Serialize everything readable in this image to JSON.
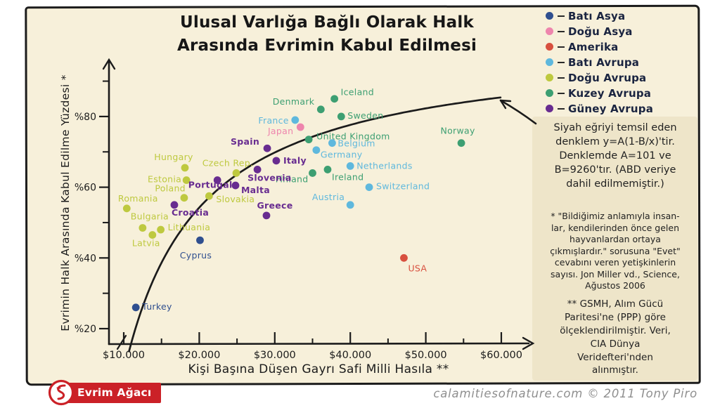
{
  "title": {
    "line1": "Ulusal Varlığa Bağlı Olarak Halk",
    "line2": "Arasında Evrimin Kabul Edilmesi"
  },
  "notes": {
    "equation_note": "Siyah eğriyi temsil eden\ndenklem y=A(1-B/x)'tir.\nDenklemde A=101 ve\nB=9260'tır. (ABD veriye\ndahil edilmemiştir.)",
    "footnote_star": "* \"Bildiğimiz anlamıyla insan-\nlar, kendilerinden önce gelen\nhayvanlardan ortaya\nçıkmışlardır.\" sorusuna \"Evet\"\ncevabını veren yetişkinlerin\nsayısı. Jon Miller vd., Science,\nAğustos 2006",
    "footnote_doublestar": "** GSMH, Alım Gücü\nParitesi'ne (PPP) göre\nölçeklendirilmiştir. Veri,\nCIA Dünya\nVeridefteri'nden\nalınmıştır."
  },
  "footer": {
    "brand": "Evrim Ağacı",
    "attribution": "calamitiesofnature.com © 2011 Tony Piro"
  },
  "chart_data": {
    "type": "scatter",
    "title": "Ulusal Varlığa Bağlı Olarak Halk Arasında Evrimin Kabul Edilmesi",
    "xlabel": "Kişi Başına Düşen Gayrı Safi Milli Hasıla **",
    "ylabel": "Evrimin Halk Arasında Kabul Edilme Yüzdesi *",
    "xlim": [
      10000,
      62000
    ],
    "ylim": [
      14,
      92
    ],
    "grid": false,
    "legend_position": "top-right",
    "x_axis": {
      "ticks": [
        {
          "label": "$10.000",
          "value": 10000
        },
        {
          "label": "$20.000",
          "value": 20000
        },
        {
          "label": "$30.000",
          "value": 30000
        },
        {
          "label": "$40.000",
          "value": 40000
        },
        {
          "label": "$50.000",
          "value": 50000
        },
        {
          "label": "$60.000",
          "value": 60000
        }
      ],
      "minor": [
        15000,
        25000,
        35000,
        45000,
        55000
      ]
    },
    "y_axis": {
      "ticks": [
        {
          "label": "%20",
          "value": 20
        },
        {
          "label": "%40",
          "value": 40
        },
        {
          "label": "%60",
          "value": 60
        },
        {
          "label": "%80",
          "value": 80
        }
      ],
      "minor": [
        30,
        50,
        70,
        90
      ]
    },
    "curve": {
      "formula": "y=A(1-B/x)",
      "A": 101,
      "B": 9260,
      "note": "ABD veriye dahil edilmemiştir",
      "color": "#1b1b1b"
    },
    "series": [
      {
        "name": "Batı Asya",
        "color": "#2f4f8f",
        "label_bold": false,
        "points": [
          {
            "country": "Turkey",
            "gdp": 11600,
            "percent": 26,
            "label_dx": 9,
            "label_dy": 3,
            "anchor": "start"
          },
          {
            "country": "Cyprus",
            "gdp": 20100,
            "percent": 45,
            "label_dx": -6,
            "label_dy": 26,
            "anchor": "middle"
          }
        ]
      },
      {
        "name": "Doğu Asya",
        "color": "#ee85ad",
        "label_bold": false,
        "points": [
          {
            "country": "Japan",
            "gdp": 33400,
            "percent": 77,
            "label_dx": -10,
            "label_dy": 10,
            "anchor": "end"
          }
        ]
      },
      {
        "name": "Amerika",
        "color": "#d8503f",
        "label_bold": false,
        "points": [
          {
            "country": "USA",
            "gdp": 47100,
            "percent": 40,
            "label_dx": 6,
            "label_dy": 19,
            "anchor": "start"
          }
        ]
      },
      {
        "name": "Batı Avrupa",
        "color": "#5fb8dd",
        "label_bold": false,
        "points": [
          {
            "country": "France",
            "gdp": 32700,
            "percent": 79,
            "label_dx": -9,
            "label_dy": 5,
            "anchor": "end"
          },
          {
            "country": "Belgium",
            "gdp": 37600,
            "percent": 72.5,
            "label_dx": 8,
            "label_dy": 5,
            "anchor": "start"
          },
          {
            "country": "Germany",
            "gdp": 35500,
            "percent": 70.5,
            "label_dx": 6,
            "label_dy": 11,
            "anchor": "start"
          },
          {
            "country": "Netherlands",
            "gdp": 40000,
            "percent": 66,
            "label_dx": 9,
            "label_dy": 4,
            "anchor": "start"
          },
          {
            "country": "Switzerland",
            "gdp": 42500,
            "percent": 60,
            "label_dx": 10,
            "label_dy": 3,
            "anchor": "start"
          },
          {
            "country": "Austria",
            "gdp": 40000,
            "percent": 55,
            "label_dx": -8,
            "label_dy": -7,
            "anchor": "end"
          }
        ]
      },
      {
        "name": "Doğu Avrupa",
        "color": "#bec93f",
        "label_bold": false,
        "points": [
          {
            "country": "Hungary",
            "gdp": 18100,
            "percent": 65.5,
            "label_dx": -16,
            "label_dy": -11,
            "anchor": "middle"
          },
          {
            "country": "Czech Rep.",
            "gdp": 24900,
            "percent": 64,
            "label_dx": -12,
            "label_dy": -10,
            "anchor": "middle"
          },
          {
            "country": "Estonia",
            "gdp": 18300,
            "percent": 62,
            "label_dx": -7,
            "label_dy": 3,
            "anchor": "end"
          },
          {
            "country": "Poland",
            "gdp": 18000,
            "percent": 57,
            "label_dx": 2,
            "label_dy": -9,
            "anchor": "end"
          },
          {
            "country": "Slovakia",
            "gdp": 21300,
            "percent": 57.5,
            "label_dx": 10,
            "label_dy": 9,
            "anchor": "start"
          },
          {
            "country": "Romania",
            "gdp": 10400,
            "percent": 54,
            "label_dx": 16,
            "label_dy": -10,
            "anchor": "middle"
          },
          {
            "country": "Bulgaria",
            "gdp": 12500,
            "percent": 48.5,
            "label_dx": 10,
            "label_dy": -12,
            "anchor": "middle"
          },
          {
            "country": "Lithuania",
            "gdp": 14900,
            "percent": 48,
            "label_dx": 10,
            "label_dy": 1,
            "anchor": "start"
          },
          {
            "country": "Latvia",
            "gdp": 13800,
            "percent": 46.5,
            "label_dx": -9,
            "label_dy": 16,
            "anchor": "middle"
          }
        ]
      },
      {
        "name": "Kuzey Avrupa",
        "color": "#3d9f72",
        "label_bold": false,
        "points": [
          {
            "country": "Iceland",
            "gdp": 37900,
            "percent": 85,
            "label_dx": 9,
            "label_dy": -5,
            "anchor": "start"
          },
          {
            "country": "Denmark",
            "gdp": 36100,
            "percent": 82,
            "label_dx": -9,
            "label_dy": -7,
            "anchor": "end"
          },
          {
            "country": "Sweden",
            "gdp": 38800,
            "percent": 80,
            "label_dx": 9,
            "label_dy": 3,
            "anchor": "start"
          },
          {
            "country": "United Kingdom",
            "gdp": 34500,
            "percent": 73.5,
            "label_dx": 11,
            "label_dy": 0,
            "anchor": "start"
          },
          {
            "country": "Norway",
            "gdp": 54700,
            "percent": 72.5,
            "label_dx": -5,
            "label_dy": -13,
            "anchor": "middle"
          },
          {
            "country": "Finland",
            "gdp": 35000,
            "percent": 64,
            "label_dx": -6,
            "label_dy": 13,
            "anchor": "end"
          },
          {
            "country": "Ireland",
            "gdp": 37000,
            "percent": 65,
            "label_dx": 6,
            "label_dy": 15,
            "anchor": "start"
          }
        ]
      },
      {
        "name": "Güney Avrupa",
        "color": "#682c90",
        "label_bold": true,
        "points": [
          {
            "country": "Spain",
            "gdp": 29000,
            "percent": 71,
            "label_dx": -11,
            "label_dy": -5,
            "anchor": "end"
          },
          {
            "country": "Italy",
            "gdp": 30200,
            "percent": 67.5,
            "label_dx": 10,
            "label_dy": 4,
            "anchor": "start"
          },
          {
            "country": "Slovenia",
            "gdp": 27700,
            "percent": 65,
            "label_dx": -14,
            "label_dy": 16,
            "anchor": "start"
          },
          {
            "country": "Portugal",
            "gdp": 22400,
            "percent": 62,
            "label_dx": -10,
            "label_dy": 11,
            "anchor": "middle"
          },
          {
            "country": "Malta",
            "gdp": 24800,
            "percent": 60.5,
            "label_dx": 8,
            "label_dy": 11,
            "anchor": "start"
          },
          {
            "country": "Greece",
            "gdp": 28900,
            "percent": 52,
            "label_dx": 12,
            "label_dy": -10,
            "anchor": "middle"
          },
          {
            "country": "Croatia",
            "gdp": 16700,
            "percent": 55,
            "label_dx": -4,
            "label_dy": 15,
            "anchor": "start"
          }
        ]
      }
    ]
  }
}
